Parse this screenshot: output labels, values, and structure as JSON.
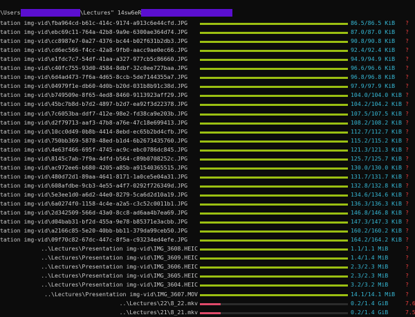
{
  "header": {
    "prefix": "\\Users",
    "middle": "\\Lectures\"",
    "suffix": "14sw6eR"
  },
  "colors": {
    "background": "#0c0c0c",
    "text": "#cccccc",
    "bar_green": "#9bbf12",
    "bar_red": "#e04a6a",
    "size_cyan": "#36b7d4",
    "mark_red": "#e43d3d",
    "redaction": "#5b0fd1"
  },
  "rows": [
    {
      "name": "tation img-vid\\fba964cd-b61c-414c-9174-a913c6e44cfd.JPG",
      "size": "86.5/86.5 KiB",
      "mark": "?",
      "progress": 1.0
    },
    {
      "name": "tation img-vid\\ebc69c11-764a-42b8-9a9e-6300ae364d74.JPG",
      "size": "87.0/87.0 KiB",
      "mark": "?",
      "progress": 1.0
    },
    {
      "name": "tation img-vid\\cc8987e7-0a27-4376-bc44-b02f631b2db3.JPG",
      "size": "90.8/90.8 KiB",
      "mark": "?",
      "progress": 1.0
    },
    {
      "name": "tation img-vid\\cd6ec566-f4cc-42a8-9fb0-aacc9ae0ec66.JPG",
      "size": "92.4/92.4 KiB",
      "mark": "?",
      "progress": 1.0
    },
    {
      "name": "tation img-vid\\e1fdc7c7-54df-41aa-a327-977cb5c86660.JPG",
      "size": "94.9/94.9 KiB",
      "mark": "?",
      "progress": 1.0
    },
    {
      "name": "tation img-vid\\c40fc755-93d0-4584-8dbf-32c0ee727baa.JPG",
      "size": "96.6/96.6 KiB",
      "mark": "?",
      "progress": 1.0
    },
    {
      "name": "tation img-vid\\6d4ad473-7f6a-4d65-8ccb-5de7144355a7.JPG",
      "size": "96.8/96.8 KiB",
      "mark": "?",
      "progress": 1.0
    },
    {
      "name": "tation img-vid\\04979f1e-db60-4d0b-b20d-031b8b91c38d.JPG",
      "size": "97.9/97.9 KiB",
      "mark": "?",
      "progress": 1.0
    },
    {
      "name": "tation img-vid\\b749509e-8f65-4ed8-8460-9113923aff29.JPG",
      "size": "104.0/104.0 KiB",
      "mark": "?",
      "progress": 1.0
    },
    {
      "name": "tation img-vid\\45bc7b8d-b7d2-4897-b2d7-ea92f3d22378.JPG",
      "size": "104.2/104.2 KiB",
      "mark": "?",
      "progress": 1.0
    },
    {
      "name": "tation img-vid\\7c6053ba-ddf7-412e-98e2-fd38ca9e203b.JPG",
      "size": "107.5/107.5 KiB",
      "mark": "?",
      "progress": 1.0
    },
    {
      "name": "tation img-vid\\d2f79713-aaf3-47b8-a76e-47c18e699413.JPG",
      "size": "108.2/108.2 KiB",
      "mark": "?",
      "progress": 1.0
    },
    {
      "name": "tation img-vid\\10cc0d49-0b8b-4414-8ebd-ec65b2bd4cfb.JPG",
      "size": "112.7/112.7 KiB",
      "mark": "?",
      "progress": 1.0
    },
    {
      "name": "tation img-vid\\750bb369-5878-48ed-b1d4-6b2673435760.JPG",
      "size": "115.2/115.2 KiB",
      "mark": "?",
      "progress": 1.0
    },
    {
      "name": "tation img-vid\\4e63f466-695f-4745-ac9c-ebc0786dc845.JPG",
      "size": "121.3/121.3 KiB",
      "mark": "?",
      "progress": 1.0
    },
    {
      "name": "tation img-vid\\8145c7ab-7f9a-4dfd-b564-c89b0708252c.JPG",
      "size": "125.7/125.7 KiB",
      "mark": "?",
      "progress": 1.0
    },
    {
      "name": "tation img-vid\\ac972ee6-b680-4205-a85b-a91540365515.JPG",
      "size": "130.0/130.0 KiB",
      "mark": "?",
      "progress": 1.0
    },
    {
      "name": "tation img-vid\\480d72d1-89aa-4641-8171-1a0ce5e04a31.JPG",
      "size": "131.7/131.7 KiB",
      "mark": "?",
      "progress": 1.0
    },
    {
      "name": "tation img-vid\\608afdbe-9cb3-4e55-a4f7-0292f726349d.JPG",
      "size": "132.8/132.8 KiB",
      "mark": "?",
      "progress": 1.0
    },
    {
      "name": "tation img-vid\\5e3ee1d0-a6d2-44e0-8279-5ca6d2d10a19.JPG",
      "size": "134.6/134.6 KiB",
      "mark": "?",
      "progress": 1.0
    },
    {
      "name": "tation img-vid\\6a0274f0-1158-4c4e-a2a5-c3c52c0011b1.JPG",
      "size": "136.3/136.3 KiB",
      "mark": "?",
      "progress": 1.0
    },
    {
      "name": "tation img-vid\\2d342509-566d-43a0-8cc8-ad6aa4b7ea69.JPG",
      "size": "146.8/146.8 KiB",
      "mark": "?",
      "progress": 1.0
    },
    {
      "name": "tation img-vid\\d04bab31-bf2d-455a-9e78-b85371e3acbb.JPG",
      "size": "147.3/147.3 KiB",
      "mark": "?",
      "progress": 1.0
    },
    {
      "name": "tation img-vid\\a2166c85-5e20-40bb-bb11-379da99ceb50.JPG",
      "size": "160.2/160.2 KiB",
      "mark": "?",
      "progress": 1.0
    },
    {
      "name": "tation img-vid\\09f70c82-67dc-447c-8f5a-c93234ed4efe.JPG",
      "size": "164.2/164.2 KiB",
      "mark": "?",
      "progress": 1.0
    },
    {
      "name": "..\\Lectures\\Presentation img-vid\\IMG_3608.HEIC",
      "size": "1.1/1.1 MiB",
      "mark": "?",
      "progress": 1.0
    },
    {
      "name": "..\\Lectures\\Presentation img-vid\\IMG_3609.HEIC",
      "size": "1.4/1.4 MiB",
      "mark": "?",
      "progress": 1.0
    },
    {
      "name": "..\\Lectures\\Presentation img-vid\\IMG_3606.HEIC",
      "size": "2.3/2.3 MiB",
      "mark": "?",
      "progress": 1.0
    },
    {
      "name": "..\\Lectures\\Presentation img-vid\\IMG_3605.HEIC",
      "size": "2.3/2.3 MiB",
      "mark": "?",
      "progress": 1.0
    },
    {
      "name": "..\\Lectures\\Presentation img-vid\\IMG_3604.HEIC",
      "size": "3.2/3.2 MiB",
      "mark": "?",
      "progress": 1.0
    },
    {
      "name": "..\\Lectures\\Presentation img-vid\\IMG_3607.MOV",
      "size": "14.1/14.1 MiB",
      "mark": "?",
      "progress": 1.0
    },
    {
      "name": "..\\Lectures\\22\\8_22.mkv",
      "size": "0.2/1.4 GiB",
      "mark": "7.6",
      "progress": 0.14
    },
    {
      "name": "..\\Lectures\\21\\8_21.mkv",
      "size": "0.2/1.4 GiB",
      "mark": "7.5",
      "progress": 0.14
    }
  ]
}
